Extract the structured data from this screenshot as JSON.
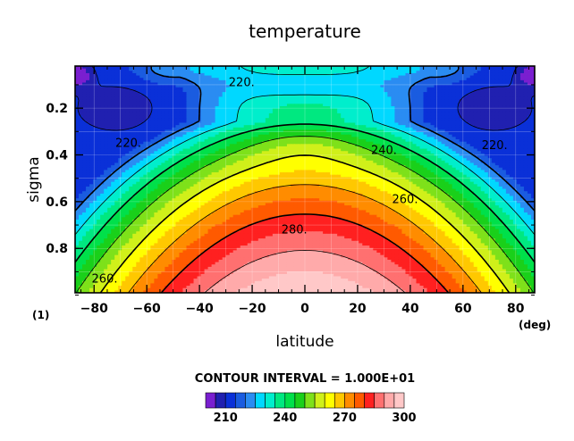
{
  "chart_data": {
    "type": "heatmap",
    "title": "temperature",
    "xlabel": "latitude",
    "ylabel": "sigma",
    "xunit": "(deg)",
    "yunit": "(1)",
    "xlim": [
      -87.2,
      87.2
    ],
    "ylim": [
      0.99,
      0.02
    ],
    "x_ticks": [
      -80,
      -60,
      -40,
      -20,
      0,
      20,
      40,
      60,
      80
    ],
    "x_tick_labels": [
      "−80",
      "−60",
      "−40",
      "−20",
      "0",
      "20",
      "40",
      "60",
      "80"
    ],
    "y_ticks": [
      0.2,
      0.4,
      0.6,
      0.8
    ],
    "y_tick_labels": [
      "0.2",
      "0.4",
      "0.6",
      "0.8"
    ],
    "contour_interval_text": "CONTOUR INTERVAL = 1.000E+01",
    "contour_interval": 10,
    "contour_labels": [
      {
        "text": "220.",
        "value": 220,
        "lat": -67,
        "sigma": 0.35
      },
      {
        "text": "220.",
        "value": 220,
        "lat": -24,
        "sigma": 0.09
      },
      {
        "text": "220.",
        "value": 220,
        "lat": 72,
        "sigma": 0.36
      },
      {
        "text": "240.",
        "value": 240,
        "lat": 30,
        "sigma": 0.38
      },
      {
        "text": "260.",
        "value": 260,
        "lat": 38,
        "sigma": 0.59
      },
      {
        "text": "280.",
        "value": 280,
        "lat": -4,
        "sigma": 0.72
      },
      {
        "text": "260.",
        "value": 260,
        "lat": -76,
        "sigma": 0.93
      }
    ],
    "shading_levels": [
      200,
      205,
      210,
      215,
      220,
      225,
      230,
      235,
      240,
      245,
      250,
      255,
      260,
      265,
      270,
      275,
      280,
      285,
      290,
      295,
      300
    ],
    "colorbar_tick_labels": [
      "210",
      "240",
      "270",
      "300"
    ],
    "colors": [
      "#7a1fd0",
      "#2020b0",
      "#0a30d8",
      "#1a5ce0",
      "#2a8cf2",
      "#00d8ff",
      "#00eecc",
      "#00e880",
      "#00e04a",
      "#1ad01a",
      "#7ee11a",
      "#d0f01a",
      "#ffff00",
      "#ffc800",
      "#ff8c00",
      "#ff5a00",
      "#ff2020",
      "#ff7070",
      "#ffaaaa",
      "#ffc8c8"
    ],
    "grid": true,
    "legend": "bottom colorbar"
  }
}
